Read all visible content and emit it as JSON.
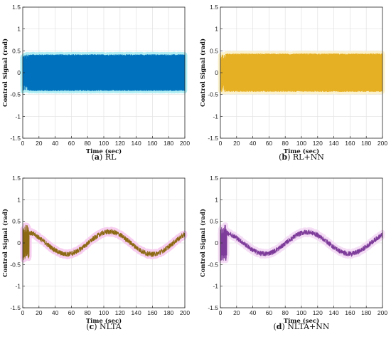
{
  "chart_data": [
    {
      "type": "line",
      "label_letter": "a",
      "caption_text": "RL",
      "ylabel": "Control Signal (rad)",
      "xlabel": "Time (sec)",
      "xlim": [
        0,
        200
      ],
      "ylim": [
        -1.5,
        1.5
      ],
      "xticks": [
        "0",
        "20",
        "40",
        "60",
        "80",
        "100",
        "120",
        "140",
        "160",
        "180",
        "200"
      ],
      "yticks": [
        "-1.5",
        "-1",
        "-0.5",
        "0",
        "0.5",
        "1",
        "1.5"
      ],
      "grid": true,
      "color": "#0072bd",
      "highlight": "#a8ecf2",
      "pattern": "saturated_oscillation",
      "amplitude": 0.42,
      "transient_end": 7
    },
    {
      "type": "line",
      "label_letter": "b",
      "caption_text": "RL+NN",
      "ylabel": "Control Signal (rad)",
      "xlabel": "Time (sec)",
      "xlim": [
        0,
        200
      ],
      "ylim": [
        -1.5,
        1.5
      ],
      "xticks": [
        "0",
        "20",
        "40",
        "60",
        "80",
        "100",
        "120",
        "140",
        "160",
        "180",
        "200"
      ],
      "yticks": [
        "-1.5",
        "-1",
        "-0.5",
        "0",
        "0.5",
        "1",
        "1.5"
      ],
      "grid": true,
      "color": "#e6b024",
      "highlight": "#fbf0c6",
      "pattern": "saturated_oscillation",
      "amplitude": 0.44,
      "transient_end": 7
    },
    {
      "type": "line",
      "label_letter": "c",
      "caption_text": "NLTA",
      "ylabel": "Control Signal (rad)",
      "xlabel": "Time (sec)",
      "xlim": [
        0,
        200
      ],
      "ylim": [
        -1.5,
        1.5
      ],
      "xticks": [
        "0",
        "20",
        "40",
        "60",
        "80",
        "100",
        "120",
        "140",
        "160",
        "180",
        "200"
      ],
      "yticks": [
        "-1.5",
        "-1",
        "-0.5",
        "0",
        "0.5",
        "1",
        "1.5"
      ],
      "grid": true,
      "color": "#8c6a14",
      "highlight": "#f6c8ee",
      "pattern": "sinusoid",
      "sine_amplitude": 0.26,
      "sine_period": 105,
      "sine_peak_x": 107,
      "noise": 0.06
    },
    {
      "type": "line",
      "label_letter": "d",
      "caption_text": "NLTA+NN",
      "ylabel": "Control Signal (rad)",
      "xlabel": "Time (sec)",
      "xlim": [
        0,
        200
      ],
      "ylim": [
        -1.5,
        1.5
      ],
      "xticks": [
        "0",
        "20",
        "40",
        "60",
        "80",
        "100",
        "120",
        "140",
        "160",
        "180",
        "200"
      ],
      "yticks": [
        "-1.5",
        "-1",
        "-0.5",
        "0",
        "0.5",
        "1",
        "1.5"
      ],
      "grid": true,
      "color": "#7e3c9a",
      "highlight": "#f3d9f4",
      "pattern": "sinusoid",
      "sine_amplitude": 0.25,
      "sine_period": 105,
      "sine_peak_x": 107,
      "noise": 0.06
    }
  ]
}
